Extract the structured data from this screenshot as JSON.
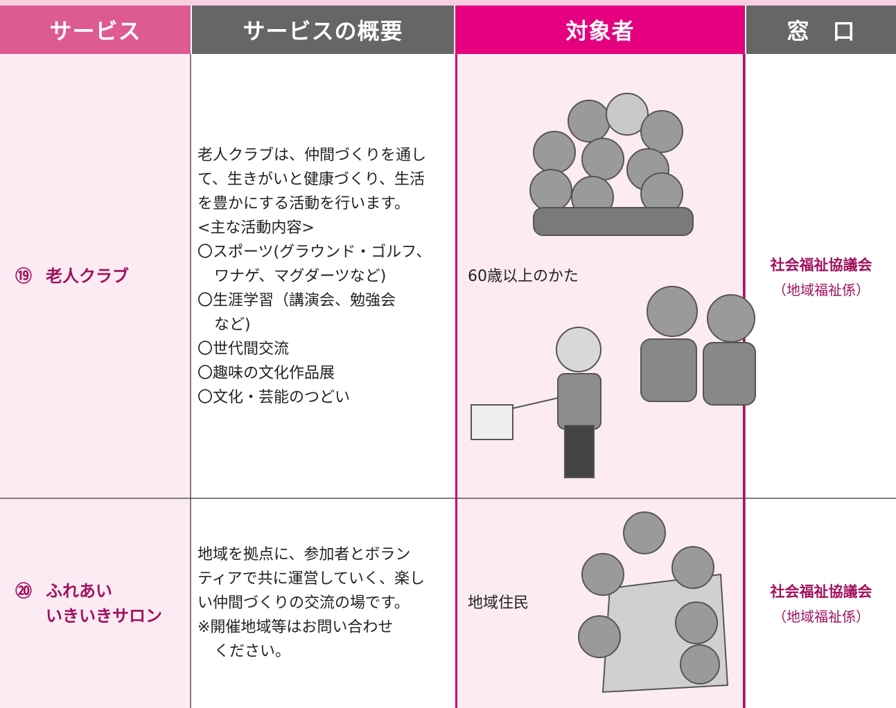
{
  "header": {
    "columns": [
      "サービス",
      "サービスの概要",
      "対象者",
      "窓　口"
    ]
  },
  "rows": [
    {
      "number": "⑲",
      "name": [
        "老人クラブ"
      ],
      "intro": [
        "老人クラブは、仲間づくりを通し",
        "て、生きがいと健康づくり、生活",
        "を豊かにする活動を行います。"
      ],
      "heading": "<主な活動内容>",
      "items": [
        [
          "〇スポーツ(グラウンド・ゴルフ、",
          "ワナゲ、マグダーツなど)"
        ],
        [
          "〇生涯学習（講演会、勉強会",
          "など)"
        ],
        [
          "〇世代間交流"
        ],
        [
          "〇趣味の文化作品展"
        ],
        [
          "〇文化・芸能のつどい"
        ]
      ],
      "target": "60歳以上のかた",
      "contact": "社会福祉協議会",
      "department": "（地域福祉係）"
    },
    {
      "number": "⑳",
      "name": [
        "ふれあい",
        "いきいきサロン"
      ],
      "intro": [
        "地域を拠点に、参加者とボラン",
        "ティアで共に運営していく、楽し",
        "い仲間づくりの交流の場です。"
      ],
      "heading": null,
      "items": [
        [
          "※開催地域等はお問い合わせ",
          "ください。"
        ]
      ],
      "target": "地域住民",
      "contact": "社会福祉協議会",
      "department": "（地域福祉係）"
    }
  ]
}
